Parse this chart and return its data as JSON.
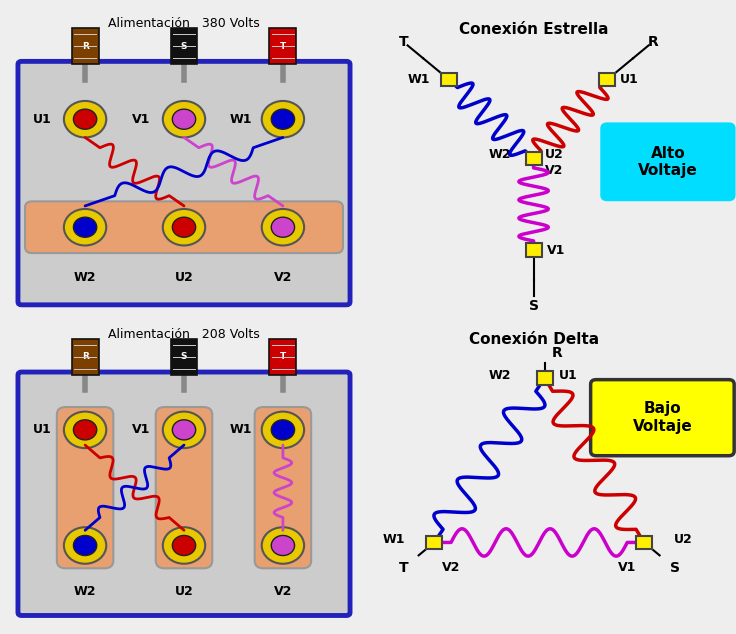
{
  "title_top": "Alimentación   380 Volts",
  "title_bottom": "Alimentación   208 Volts",
  "star_title": "Conexión Estrella",
  "delta_title": "Conexión Delta",
  "alto_voltaje": "Alto\nVoltaje",
  "bajo_voltaje": "Bajo\nVoltaje",
  "bg_color": "#eeeeee",
  "box_fill": "#cccccc",
  "box_border": "#2222bb",
  "busbar_color": "#e8a070",
  "red_wire": "#cc0000",
  "blue_wire": "#0000cc",
  "magenta_wire": "#cc00cc",
  "terminal_yellow": "#ffee00",
  "terminal_outline": "#444444",
  "cyan_box": "#00ddff",
  "yellow_box": "#ffff00"
}
